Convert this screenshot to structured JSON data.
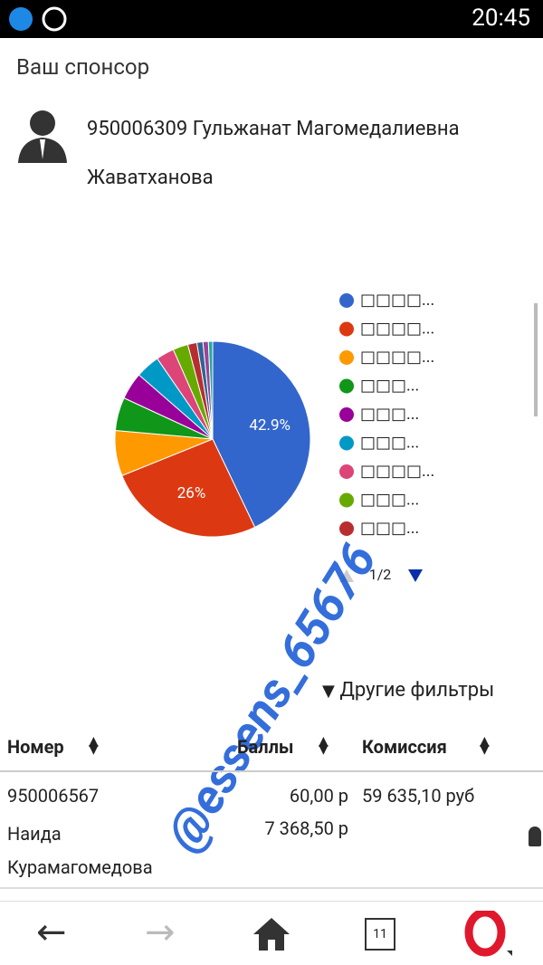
{
  "status_bar": {
    "time": "20:45"
  },
  "sponsor": {
    "heading": "Ваш спонсор",
    "name": "950006309 Гульжанат Магомедалиевна Жаватханова"
  },
  "chart_data": {
    "type": "pie",
    "categories": [
      "□□□□...",
      "□□□□...",
      "□□□□...",
      "□□□...",
      "□□□...",
      "□□□...",
      "□□□□...",
      "□□□...",
      "□□□...",
      null,
      null,
      null
    ],
    "values": [
      42.9,
      26,
      7.5,
      5.5,
      4.5,
      4,
      3,
      2.5,
      1.5,
      1,
      0.9,
      0.7
    ],
    "value_labels": [
      "42.9%",
      "26%",
      null,
      null,
      null,
      null,
      null,
      null,
      null,
      null,
      null,
      null
    ],
    "colors": [
      "#3366cc",
      "#dc3912",
      "#ff9900",
      "#109618",
      "#990099",
      "#0099c6",
      "#dd4477",
      "#66aa00",
      "#b82e2e",
      "#316395",
      "#994499",
      "#22aa99"
    ],
    "legend": "right",
    "legend_page": "1/2"
  },
  "watermark": "@essens_65676",
  "filters": {
    "label": "Другие фильтры"
  },
  "table": {
    "headers": [
      "Номер",
      "Баллы",
      "Комиссия"
    ],
    "rows": [
      {
        "number": "950006567",
        "name": "Наида Курамагомедова",
        "points": [
          "60,00 р",
          "7 368,50 р"
        ],
        "commission": "59 635,10 руб"
      }
    ]
  },
  "nav": {
    "tab_count": 11
  }
}
